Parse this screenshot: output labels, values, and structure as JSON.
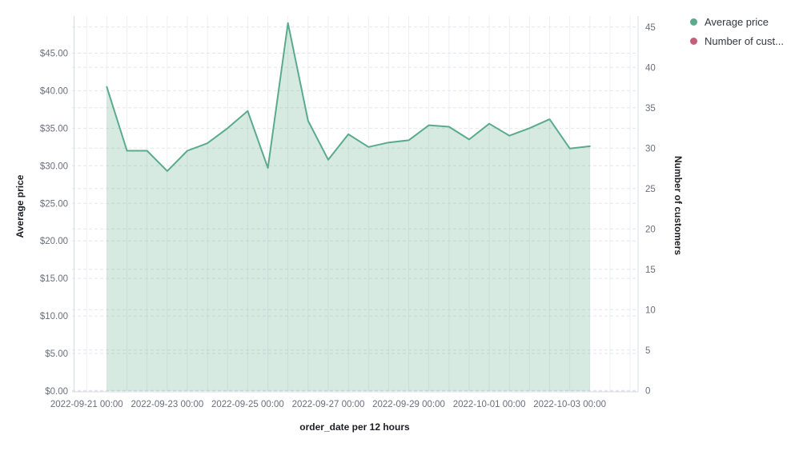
{
  "chart_data": {
    "type": "area",
    "title": "",
    "legend_position": "top-right",
    "grid": true,
    "x_axis": {
      "title": "order_date per 12 hours",
      "tick_labels": [
        "2022-09-21 00:00",
        "2022-09-23 00:00",
        "2022-09-25 00:00",
        "2022-09-27 00:00",
        "2022-09-29 00:00",
        "2022-10-01 00:00",
        "2022-10-03 00:00"
      ]
    },
    "left_axis": {
      "title": "Average price",
      "tick_values": [
        0,
        5,
        10,
        15,
        20,
        25,
        30,
        35,
        40,
        45
      ],
      "tick_labels": [
        "$0.00",
        "$5.00",
        "$10.00",
        "$15.00",
        "$20.00",
        "$25.00",
        "$30.00",
        "$35.00",
        "$40.00",
        "$45.00"
      ],
      "range": [
        0,
        50
      ]
    },
    "right_axis": {
      "title": "Number of customers",
      "tick_values": [
        0,
        5,
        10,
        15,
        20,
        25,
        30,
        35,
        40,
        45
      ],
      "tick_labels": [
        "0",
        "5",
        "10",
        "15",
        "20",
        "25",
        "30",
        "35",
        "40",
        "45"
      ],
      "range": [
        0,
        46.5
      ]
    },
    "series": [
      {
        "name": "Average price",
        "axis": "left",
        "color": "#5aab8c",
        "fill_opacity": 0.25,
        "x": [
          "2022-09-21 12:00",
          "2022-09-22 00:00",
          "2022-09-22 12:00",
          "2022-09-23 00:00",
          "2022-09-23 12:00",
          "2022-09-24 00:00",
          "2022-09-24 12:00",
          "2022-09-25 00:00",
          "2022-09-25 12:00",
          "2022-09-26 00:00",
          "2022-09-26 12:00",
          "2022-09-27 00:00",
          "2022-09-27 12:00",
          "2022-09-28 00:00",
          "2022-09-28 12:00",
          "2022-09-29 00:00",
          "2022-09-29 12:00",
          "2022-09-30 00:00",
          "2022-09-30 12:00",
          "2022-10-01 00:00",
          "2022-10-01 12:00",
          "2022-10-02 00:00",
          "2022-10-02 12:00",
          "2022-10-03 00:00",
          "2022-10-03 12:00"
        ],
        "values": [
          40.5,
          32.0,
          32.0,
          29.3,
          32.0,
          33.0,
          35.0,
          37.3,
          29.7,
          49.0,
          36.0,
          30.8,
          34.2,
          32.5,
          33.1,
          33.4,
          35.4,
          35.2,
          33.5,
          35.6,
          34.0,
          35.0,
          36.2,
          32.3,
          32.6
        ]
      },
      {
        "name": "Number of customers",
        "axis": "right",
        "color": "#c75d7c",
        "x": [],
        "values": []
      }
    ]
  },
  "legend": {
    "items": [
      {
        "label": "Average price",
        "color": "#5aab8c"
      },
      {
        "label": "Number of cust...",
        "color": "#c75d7c"
      }
    ]
  },
  "colors": {
    "series_green": "#5aab8c",
    "series_pink": "#c75d7c",
    "grid_vertical": "#edeff3",
    "grid_horizontal": "#e2e6ec",
    "axis_line": "#d7dce4",
    "tick_text": "#696f7d",
    "title_text": "#1d1e24"
  }
}
